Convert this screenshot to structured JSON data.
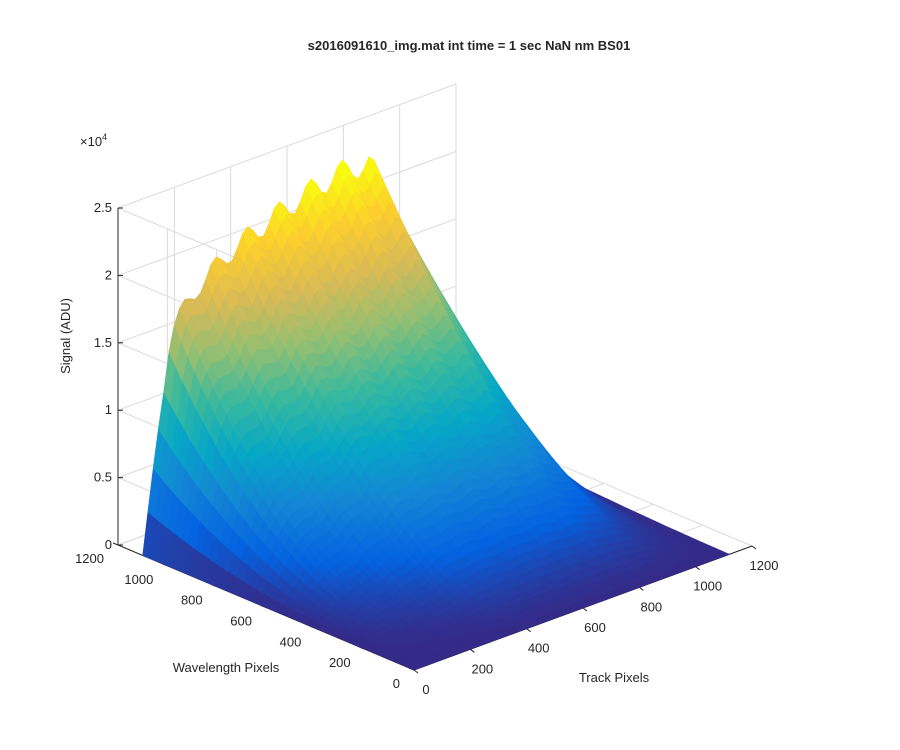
{
  "chart_data": {
    "type": "surface",
    "title": "s2016091610_img.mat int time = 1 sec  NaN nm BS01",
    "xlabel": "Track Pixels",
    "ylabel": "Wavelength Pixels",
    "zlabel": "Signal (ADU)",
    "z_exponent_label": "×10",
    "z_exponent_power": "4",
    "xlim": [
      0,
      1200
    ],
    "ylim": [
      0,
      1200
    ],
    "zlim": [
      0,
      25000
    ],
    "x_ticks": [
      "0",
      "200",
      "400",
      "600",
      "800",
      "1000",
      "1200"
    ],
    "y_ticks": [
      "0",
      "200",
      "400",
      "600",
      "800",
      "1000",
      "1200"
    ],
    "z_ticks": [
      "0",
      "0.5",
      "1",
      "1.5",
      "2",
      "2.5"
    ],
    "grid": true,
    "colormap": "parula",
    "colormap_stops": [
      "#352a87",
      "#0363e1",
      "#1485d4",
      "#06a7c6",
      "#38b99e",
      "#92bf73",
      "#d9ba56",
      "#fcce2e",
      "#f9fb0e"
    ],
    "surface_ridge": {
      "description_values": "peak signal along the wavelength axis at each track position",
      "track_pixels": [
        0,
        100,
        200,
        300,
        400,
        500,
        600,
        700,
        800,
        900,
        1000,
        1100
      ],
      "wavelength_max_pixel": 1100,
      "peak_signal": [
        0,
        16000,
        18500,
        20000,
        21000,
        21800,
        22500,
        23000,
        23000,
        19000,
        9000,
        1000
      ]
    }
  }
}
